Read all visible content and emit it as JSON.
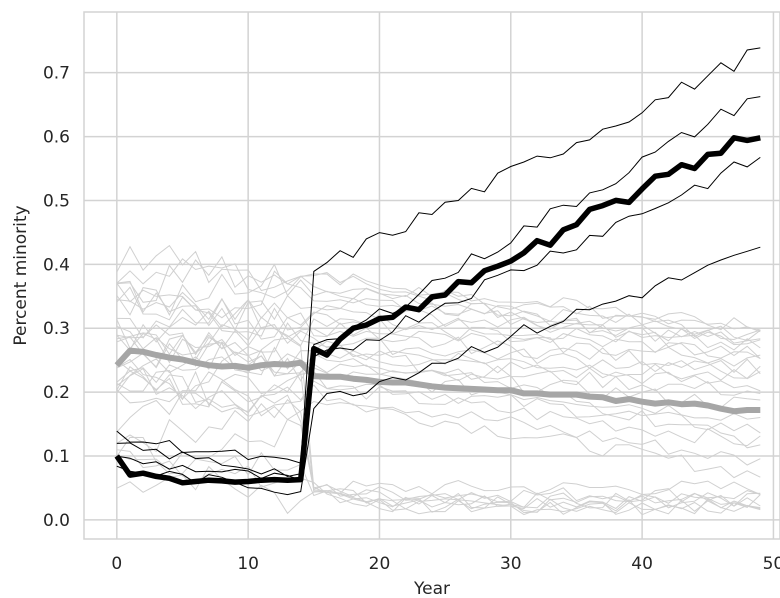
{
  "chart_data": {
    "type": "line",
    "xlabel": "Year",
    "ylabel": "Percent minority",
    "title": "",
    "xlim": [
      -2.5,
      50.5
    ],
    "ylim": [
      -0.03,
      0.795
    ],
    "xticks": [
      0,
      10,
      20,
      30,
      40,
      50
    ],
    "yticks": [
      0.0,
      0.1,
      0.2,
      0.3,
      0.4,
      0.5,
      0.6,
      0.7
    ],
    "xtick_labels": [
      "0",
      "10",
      "20",
      "30",
      "40",
      "50"
    ],
    "ytick_labels": [
      "0.0",
      "0.1",
      "0.2",
      "0.3",
      "0.4",
      "0.5",
      "0.6",
      "0.7"
    ],
    "grid": true,
    "colors": {
      "grid": "#d3d3d3",
      "light_lines": "#d0d0d0",
      "gray_mean": "#a6a6a6",
      "black": "#000000"
    },
    "black_individual": [
      {
        "start": 0.13,
        "pre_end": 0.085,
        "jump": 0.39,
        "end": 0.735
      },
      {
        "start": 0.115,
        "pre_end": 0.07,
        "jump": 0.262,
        "end": 0.668
      },
      {
        "start": 0.095,
        "pre_end": 0.06,
        "jump": 0.245,
        "end": 0.567
      },
      {
        "start": 0.08,
        "pre_end": 0.045,
        "jump": 0.182,
        "end": 0.42
      }
    ],
    "black_mean": {
      "x": [
        0,
        1,
        2,
        3,
        4,
        5,
        6,
        7,
        8,
        9,
        10,
        11,
        12,
        13,
        14,
        15,
        16,
        17,
        18,
        19,
        20,
        21,
        22,
        23,
        24,
        25,
        26,
        27,
        28,
        29,
        30,
        31,
        32,
        33,
        34,
        35,
        36,
        37,
        38,
        39,
        40,
        41,
        42,
        43,
        44,
        45,
        46,
        47,
        48,
        49
      ],
      "y": [
        0.1,
        0.07,
        0.073,
        0.068,
        0.065,
        0.058,
        0.06,
        0.062,
        0.061,
        0.059,
        0.06,
        0.062,
        0.063,
        0.062,
        0.063,
        0.268,
        0.258,
        0.283,
        0.3,
        0.305,
        0.315,
        0.317,
        0.333,
        0.329,
        0.349,
        0.352,
        0.373,
        0.371,
        0.39,
        0.397,
        0.405,
        0.418,
        0.437,
        0.43,
        0.454,
        0.462,
        0.486,
        0.492,
        0.5,
        0.497,
        0.518,
        0.538,
        0.541,
        0.556,
        0.55,
        0.572,
        0.574,
        0.598,
        0.594,
        0.598
      ]
    },
    "gray_mean": {
      "x": [
        0,
        1,
        2,
        3,
        4,
        5,
        6,
        7,
        8,
        9,
        10,
        11,
        12,
        13,
        14,
        15,
        16,
        17,
        18,
        19,
        20,
        21,
        22,
        23,
        24,
        25,
        26,
        27,
        28,
        29,
        30,
        31,
        32,
        33,
        34,
        35,
        36,
        37,
        38,
        39,
        40,
        41,
        42,
        43,
        44,
        45,
        46,
        47,
        48,
        49
      ],
      "y": [
        0.242,
        0.265,
        0.263,
        0.258,
        0.254,
        0.251,
        0.246,
        0.242,
        0.24,
        0.241,
        0.238,
        0.242,
        0.244,
        0.243,
        0.246,
        0.225,
        0.224,
        0.224,
        0.221,
        0.219,
        0.216,
        0.215,
        0.215,
        0.212,
        0.209,
        0.207,
        0.206,
        0.205,
        0.204,
        0.203,
        0.203,
        0.198,
        0.198,
        0.196,
        0.196,
        0.196,
        0.193,
        0.192,
        0.186,
        0.189,
        0.185,
        0.182,
        0.184,
        0.181,
        0.182,
        0.179,
        0.174,
        0.17,
        0.172,
        0.172
      ]
    },
    "light_series_starts": [
      0.05,
      0.08,
      0.1,
      0.12,
      0.15,
      0.17,
      0.19,
      0.2,
      0.21,
      0.22,
      0.23,
      0.24,
      0.25,
      0.26,
      0.27,
      0.28,
      0.29,
      0.3,
      0.31,
      0.32,
      0.33,
      0.34,
      0.35,
      0.36,
      0.37,
      0.38,
      0.39,
      0.22,
      0.25,
      0.28
    ],
    "light_series_ends": [
      0.02,
      0.02,
      0.03,
      0.03,
      0.04,
      0.05,
      0.07,
      0.09,
      0.12,
      0.14,
      0.16,
      0.18,
      0.2,
      0.21,
      0.22,
      0.23,
      0.24,
      0.25,
      0.26,
      0.27,
      0.28,
      0.28,
      0.29,
      0.29,
      0.3,
      0.3,
      0.25,
      0.03,
      0.02,
      0.12
    ]
  }
}
